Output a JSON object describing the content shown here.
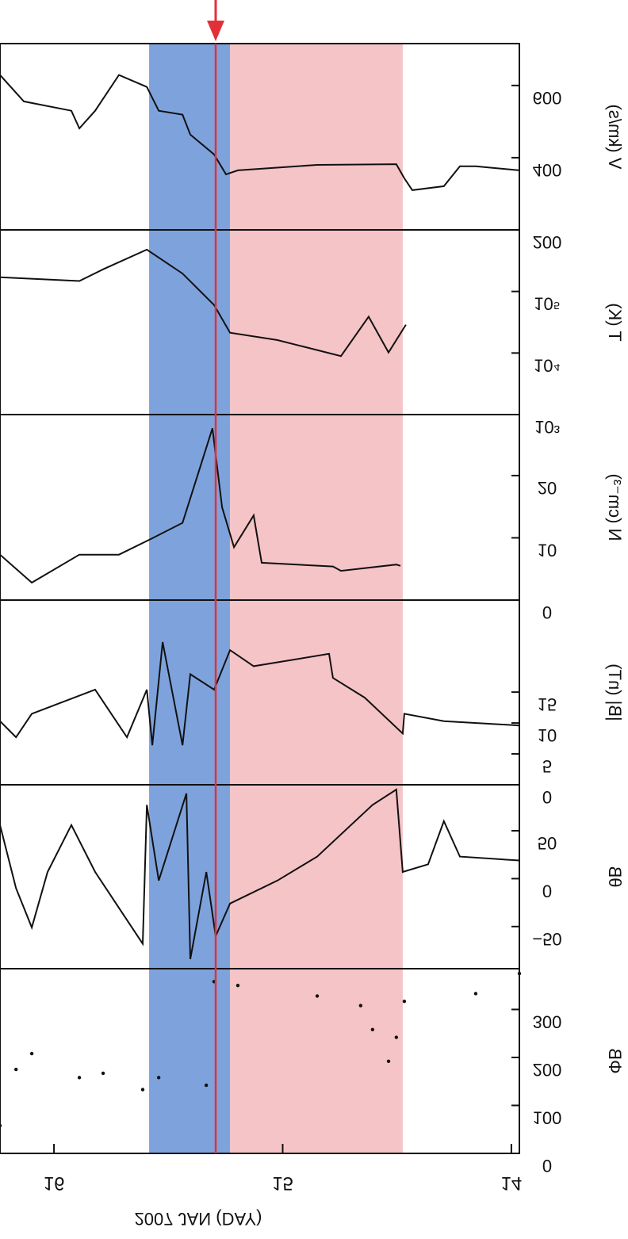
{
  "chart_data": {
    "type": "line",
    "xlabel": "2007 JAN (DAY)",
    "x_ticks": [
      16,
      15,
      14
    ],
    "xlim": [
      16.236,
      13.965
    ],
    "shaded_regions": [
      {
        "from": 15.584,
        "to": 15.23,
        "color": "#7ea3dc"
      },
      {
        "from": 15.23,
        "to": 14.475,
        "color": "#f5c4c7"
      }
    ],
    "marker_line": {
      "x": 15.293,
      "color": "#e23038"
    },
    "panels": [
      {
        "ylabel": "V (km/s)",
        "scale": "linear",
        "ylim": [
          200,
          716
        ],
        "ticks": [
          {
            "v": 200,
            "label": "200"
          },
          {
            "v": 400,
            "label": "400"
          },
          {
            "v": 600,
            "label": "600"
          }
        ],
        "style": "line",
        "points": [
          [
            16.236,
            629
          ],
          [
            16.132,
            556
          ],
          [
            15.924,
            530
          ],
          [
            15.889,
            481
          ],
          [
            15.82,
            530
          ],
          [
            15.716,
            629
          ],
          [
            15.594,
            596
          ],
          [
            15.542,
            530
          ],
          [
            15.438,
            519
          ],
          [
            15.404,
            464
          ],
          [
            15.3,
            409
          ],
          [
            15.248,
            354
          ],
          [
            15.196,
            365
          ],
          [
            14.849,
            380
          ],
          [
            14.503,
            382
          ],
          [
            14.468,
            343
          ],
          [
            14.433,
            310
          ],
          [
            14.295,
            321
          ],
          [
            14.225,
            376
          ],
          [
            14.156,
            376
          ],
          [
            13.965,
            365
          ]
        ]
      },
      {
        "ylabel": "T (K)",
        "scale": "log",
        "ylim": [
          3,
          6
        ],
        "ticks": [
          {
            "v": 3,
            "label": "10³"
          },
          {
            "v": 4,
            "label": "10⁴"
          },
          {
            "v": 5,
            "label": "10⁵"
          }
        ],
        "style": "line",
        "points": [
          [
            16.236,
            5.23
          ],
          [
            15.889,
            5.17
          ],
          [
            15.785,
            5.36
          ],
          [
            15.594,
            5.68
          ],
          [
            15.438,
            5.29
          ],
          [
            15.3,
            4.78
          ],
          [
            15.23,
            4.33
          ],
          [
            15.023,
            4.21
          ],
          [
            14.745,
            3.95
          ],
          [
            14.624,
            4.59
          ],
          [
            14.537,
            4.01
          ],
          [
            14.461,
            4.46
          ]
        ]
      },
      {
        "ylabel": "N (cm⁻³)",
        "scale": "linear",
        "ylim": [
          0,
          29.8
        ],
        "ticks": [
          {
            "v": 0,
            "label": "0"
          },
          {
            "v": 10,
            "label": "10"
          },
          {
            "v": 20,
            "label": "20"
          }
        ],
        "style": "line",
        "points": [
          [
            16.236,
            7.3
          ],
          [
            16.097,
            2.8
          ],
          [
            15.889,
            7.3
          ],
          [
            15.716,
            7.3
          ],
          [
            15.577,
            9.8
          ],
          [
            15.438,
            12.4
          ],
          [
            15.307,
            27.6
          ],
          [
            15.265,
            14.9
          ],
          [
            15.213,
            8.5
          ],
          [
            15.127,
            13.6
          ],
          [
            15.092,
            6.0
          ],
          [
            14.78,
            5.4
          ],
          [
            14.745,
            4.7
          ],
          [
            14.503,
            5.7
          ],
          [
            14.485,
            5.5
          ]
        ]
      },
      {
        "ylabel": "|B| (nT)",
        "scale": "linear",
        "ylim": [
          0,
          29.9
        ],
        "ticks": [
          {
            "v": 0,
            "label": "0"
          },
          {
            "v": 5,
            "label": "5"
          },
          {
            "v": 10,
            "label": "10"
          },
          {
            "v": 15,
            "label": "15"
          }
        ],
        "style": "line",
        "points": [
          [
            16.236,
            10.3
          ],
          [
            16.166,
            7.7
          ],
          [
            16.097,
            11.5
          ],
          [
            15.82,
            15.4
          ],
          [
            15.681,
            7.7
          ],
          [
            15.594,
            15.4
          ],
          [
            15.57,
            6.4
          ],
          [
            15.525,
            23.1
          ],
          [
            15.438,
            6.4
          ],
          [
            15.404,
            17.9
          ],
          [
            15.3,
            15.4
          ],
          [
            15.23,
            21.8
          ],
          [
            15.127,
            19.2
          ],
          [
            14.797,
            21.2
          ],
          [
            14.78,
            17.3
          ],
          [
            14.641,
            14.1
          ],
          [
            14.475,
            8.3
          ],
          [
            14.468,
            11.5
          ],
          [
            14.295,
            10.3
          ],
          [
            13.965,
            9.6
          ]
        ]
      },
      {
        "ylabel": "θB",
        "scale": "linear",
        "ylim": [
          -94,
          98
        ],
        "ticks": [
          {
            "v": -50,
            "label": "−50"
          },
          {
            "v": 0,
            "label": "0"
          },
          {
            "v": 50,
            "label": "50"
          }
        ],
        "style": "line",
        "points": [
          [
            16.236,
            56
          ],
          [
            16.166,
            -10
          ],
          [
            16.097,
            -51
          ],
          [
            16.028,
            7
          ],
          [
            15.924,
            56
          ],
          [
            15.82,
            7
          ],
          [
            15.612,
            -68
          ],
          [
            15.594,
            77
          ],
          [
            15.542,
            -2
          ],
          [
            15.421,
            89
          ],
          [
            15.404,
            -84
          ],
          [
            15.334,
            7
          ],
          [
            15.293,
            -60
          ],
          [
            15.23,
            -26
          ],
          [
            15.023,
            -2
          ],
          [
            14.849,
            23
          ],
          [
            14.607,
            77
          ],
          [
            14.503,
            93
          ],
          [
            14.475,
            7
          ],
          [
            14.364,
            15
          ],
          [
            14.295,
            60
          ],
          [
            14.225,
            23
          ],
          [
            13.965,
            19
          ]
        ]
      },
      {
        "ylabel": "ΦB",
        "scale": "linear",
        "ylim": [
          0,
          385
        ],
        "ticks": [
          {
            "v": 0,
            "label": "0"
          },
          {
            "v": 100,
            "label": "100"
          },
          {
            "v": 200,
            "label": "200"
          },
          {
            "v": 300,
            "label": "300"
          }
        ],
        "style": "scatter",
        "points": [
          [
            16.236,
            58
          ],
          [
            16.166,
            175
          ],
          [
            16.097,
            208
          ],
          [
            15.889,
            158
          ],
          [
            15.785,
            167
          ],
          [
            15.612,
            133
          ],
          [
            15.542,
            158
          ],
          [
            15.334,
            142
          ],
          [
            15.3,
            358
          ],
          [
            15.196,
            350
          ],
          [
            14.849,
            328
          ],
          [
            14.659,
            308
          ],
          [
            14.607,
            258
          ],
          [
            14.537,
            192
          ],
          [
            14.503,
            242
          ],
          [
            14.468,
            317
          ],
          [
            14.156,
            333
          ],
          [
            13.965,
            375
          ]
        ]
      }
    ]
  }
}
